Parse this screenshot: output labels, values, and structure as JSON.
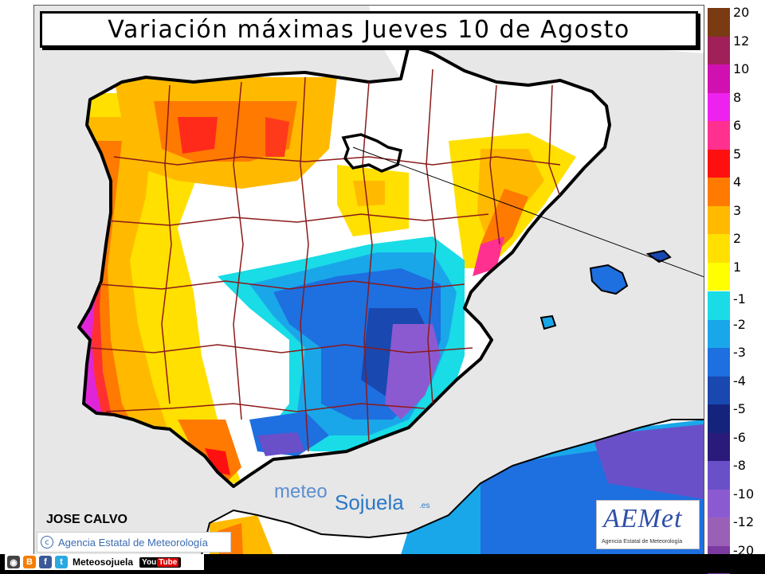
{
  "title": "Variación máximas Jueves 10 de Agosto",
  "author": "JOSE CALVO",
  "agency_credit": "Agencia Estatal de Meteorología",
  "logo": {
    "name": "AEMet",
    "subtitle": "Agencia Estatal de Meteorología"
  },
  "watermark": {
    "part1": "meteo",
    "part2": "Sojuela",
    "domain": ".es"
  },
  "social": {
    "handle": "Meteosojuela",
    "icons": [
      "camera-icon",
      "blogger-icon",
      "facebook-icon",
      "twitter-icon",
      "youtube-icon"
    ],
    "youtube_label": "You",
    "youtube_label2": "Tube"
  },
  "legend": {
    "positive": [
      {
        "label": "20",
        "color": "#7a3a12"
      },
      {
        "label": "12",
        "color": "#a0205a"
      },
      {
        "label": "10",
        "color": "#d010b0"
      },
      {
        "label": "8",
        "color": "#ee22ee"
      },
      {
        "label": "6",
        "color": "#ff3090"
      },
      {
        "label": "5",
        "color": "#ff1010"
      },
      {
        "label": "4",
        "color": "#ff7a00"
      },
      {
        "label": "3",
        "color": "#ffba00"
      },
      {
        "label": "2",
        "color": "#ffe000"
      },
      {
        "label": "1",
        "color": "#ffff00"
      }
    ],
    "negative": [
      {
        "label": "-1",
        "color": "#19dce6"
      },
      {
        "label": "-2",
        "color": "#19a7ea"
      },
      {
        "label": "-3",
        "color": "#1e6fe0"
      },
      {
        "label": "-4",
        "color": "#1848b0"
      },
      {
        "label": "-5",
        "color": "#14247c"
      },
      {
        "label": "-6",
        "color": "#2a1a7a"
      },
      {
        "label": "-8",
        "color": "#6a50c8"
      },
      {
        "label": "-10",
        "color": "#8c5ad0"
      },
      {
        "label": "-12",
        "color": "#9a60b8"
      },
      {
        "label": "-20",
        "color": "#7a3aa0"
      }
    ]
  },
  "colors": {
    "sea": "#e7e7e7",
    "neutral_land": "#ffffff",
    "coast": "#000000",
    "province_borders": "#8b1a1a"
  }
}
